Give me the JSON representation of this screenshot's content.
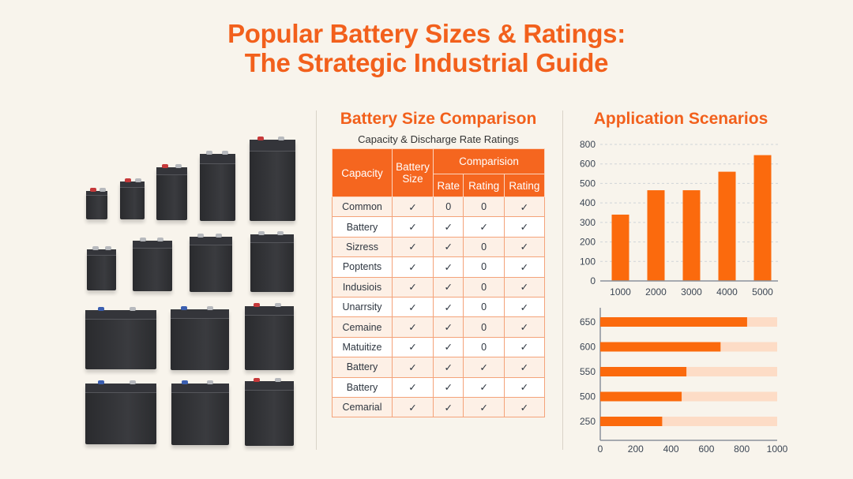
{
  "header": {
    "title_line1": "Popular Battery Sizes & Ratings:",
    "title_line2": "The Strategic Industrial Guide"
  },
  "colors": {
    "accent": "#f2601c",
    "bar": "#fb6a0d",
    "track": "#fddcc6",
    "header_bg": "#f5661f"
  },
  "comparison": {
    "title": "Battery Size Comparison",
    "subtitle": "Capacity & Discharge Rate Ratings",
    "headers": {
      "capacity": "Capacity",
      "battery_size": "Battery Size",
      "group": "Comparision",
      "rate": "Rate",
      "rating1": "Rating",
      "rating2": "Rating"
    },
    "rows": [
      [
        "Common",
        "✓",
        "0",
        "0",
        "✓"
      ],
      [
        "Battery",
        "✓",
        "✓",
        "✓",
        "✓"
      ],
      [
        "Sizress",
        "✓",
        "✓",
        "0",
        "✓"
      ],
      [
        "Poptents",
        "✓",
        "✓",
        "0",
        "✓"
      ],
      [
        "Indusiois",
        "✓",
        "✓",
        "0",
        "✓"
      ],
      [
        "Unarrsity",
        "✓",
        "✓",
        "0",
        "✓"
      ],
      [
        "Cemaine",
        "✓",
        "✓",
        "0",
        "✓"
      ],
      [
        "Matuitize",
        "✓",
        "✓",
        "0",
        "✓"
      ],
      [
        "Battery",
        "✓",
        "✓",
        "✓",
        "✓"
      ],
      [
        "Battery",
        "✓",
        "✓",
        "✓",
        "✓"
      ],
      [
        "Cemarial",
        "✓",
        "✓",
        "✓",
        "✓"
      ]
    ]
  },
  "applications": {
    "title": "Application Scenarios"
  },
  "chart_data": [
    {
      "type": "bar",
      "categories": [
        "1000",
        "2000",
        "3000",
        "4000",
        "5000"
      ],
      "values": [
        340,
        465,
        465,
        560,
        645
      ],
      "ytick_labels": [
        "0",
        "100",
        "200",
        "300",
        "400",
        "500",
        "600",
        "800"
      ],
      "ylim": [
        0,
        700
      ],
      "grid": true
    },
    {
      "type": "bar",
      "orientation": "horizontal",
      "categories": [
        "650",
        "600",
        "550",
        "500",
        "250"
      ],
      "values": [
        830,
        680,
        487,
        460,
        350
      ],
      "track_max": 1000,
      "xtick_labels": [
        "0",
        "200",
        "400",
        "600",
        "800",
        "1000"
      ],
      "xlim": [
        0,
        1000
      ]
    }
  ]
}
